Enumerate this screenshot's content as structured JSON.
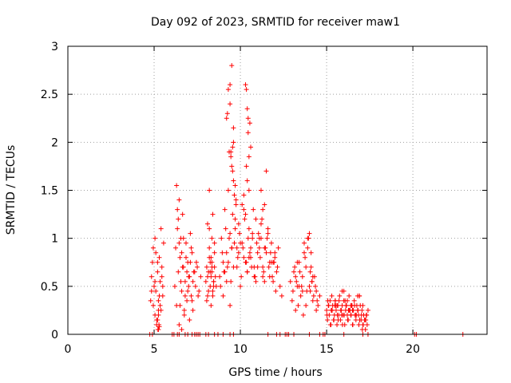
{
  "chart_data": {
    "type": "scatter",
    "title": "Day 092 of 2023, SRMTID for receiver maw1",
    "xlabel": "GPS time / hours",
    "ylabel": "SRMTID / TECUs",
    "xlim": [
      0,
      24.3
    ],
    "ylim": [
      0,
      3
    ],
    "xticks": [
      "0",
      "5",
      "10",
      "15",
      "20"
    ],
    "yticks": [
      "0",
      "0.5",
      "1",
      "1.5",
      "2",
      "2.5",
      "3"
    ],
    "grid": true,
    "legend": "none",
    "marker": "+",
    "color": "#ff0000",
    "series": [
      {
        "x": [
          4.8,
          4.85,
          4.9,
          4.95,
          5.0,
          5.05,
          5.1,
          5.15,
          5.2,
          5.25,
          5.3,
          5.35,
          5.4,
          5.45,
          5.5,
          5.55,
          4.85,
          4.95,
          5.05,
          5.15,
          5.25,
          5.35,
          5.45,
          5.1,
          5.2,
          5.3,
          5.05,
          5.25,
          5.4,
          5.5,
          5.2,
          5.22,
          5.25,
          5.28,
          5.3,
          6.2,
          6.25,
          6.3,
          6.35,
          6.4,
          6.45,
          6.5,
          6.55,
          6.6,
          6.65,
          6.7,
          6.75,
          6.8,
          6.85,
          6.9,
          6.95,
          7.0,
          7.05,
          7.1,
          7.15,
          7.2,
          7.25,
          7.3,
          7.4,
          7.5,
          7.6,
          7.7,
          6.3,
          6.4,
          6.5,
          6.6,
          6.7,
          6.8,
          6.9,
          7.0,
          7.1,
          7.2,
          6.35,
          6.45,
          6.55,
          6.65,
          6.75,
          6.85,
          6.95,
          7.05,
          7.15,
          7.25,
          7.35,
          7.45,
          7.55,
          6.45,
          6.6,
          8.0,
          8.05,
          8.1,
          8.15,
          8.2,
          8.25,
          8.3,
          8.35,
          8.4,
          8.45,
          8.5,
          8.55,
          8.6,
          8.1,
          8.2,
          8.3,
          8.4,
          8.5,
          8.15,
          8.25,
          8.35,
          8.45,
          8.05,
          8.2,
          8.35,
          8.5,
          8.1,
          8.3,
          8.45,
          8.2,
          8.4,
          8.25,
          8.35,
          8.8,
          8.9,
          9.0,
          9.1,
          9.2,
          9.3,
          9.4,
          9.5,
          9.6,
          9.7,
          9.8,
          9.9,
          10.0,
          10.1,
          10.2,
          10.3,
          10.4,
          10.5,
          10.6,
          10.7,
          10.8,
          10.9,
          11.0,
          11.1,
          11.2,
          11.3,
          11.4,
          11.5,
          11.6,
          11.7,
          11.8,
          11.9,
          12.0,
          12.1,
          12.2,
          12.3,
          8.85,
          8.95,
          9.05,
          9.15,
          9.25,
          9.35,
          9.45,
          9.55,
          9.65,
          9.75,
          9.85,
          9.95,
          10.05,
          10.15,
          10.25,
          10.35,
          10.45,
          10.55,
          10.65,
          10.75,
          10.85,
          10.95,
          11.05,
          11.15,
          11.25,
          11.35,
          11.45,
          11.55,
          11.65,
          11.75,
          11.85,
          11.95,
          12.05,
          12.15,
          9.0,
          9.2,
          9.4,
          9.6,
          9.8,
          10.0,
          10.2,
          10.4,
          10.6,
          10.8,
          11.0,
          11.2,
          11.4,
          11.6,
          11.8,
          12.0,
          9.1,
          9.3,
          9.5,
          9.7,
          9.9,
          10.1,
          10.3,
          10.5,
          10.7,
          10.9,
          11.1,
          11.3,
          11.5,
          11.7,
          11.9,
          9.2,
          9.25,
          9.3,
          9.4,
          9.45,
          9.5,
          9.55,
          9.6,
          9.65,
          9.7,
          10.3,
          10.35,
          10.4,
          10.45,
          10.5,
          10.55,
          10.2,
          10.4,
          10.6,
          11.2,
          11.3,
          11.4,
          9.45,
          9.5,
          9.6,
          9.35,
          9.4,
          9.55,
          9.65,
          9.75,
          10.35,
          10.45,
          10.5,
          12.4,
          12.9,
          13.0,
          13.1,
          13.2,
          13.3,
          13.4,
          13.5,
          13.6,
          13.7,
          13.8,
          13.9,
          14.0,
          14.1,
          14.2,
          14.3,
          14.4,
          14.5,
          14.6,
          13.05,
          13.15,
          13.25,
          13.35,
          13.45,
          13.55,
          13.65,
          13.75,
          13.85,
          13.95,
          14.05,
          14.15,
          14.25,
          14.35,
          14.45,
          13.2,
          13.4,
          13.6,
          13.8,
          14.0,
          14.2,
          14.4,
          13.3,
          13.7,
          14.1,
          13.9,
          14.05,
          14.15,
          15.0,
          15.05,
          15.1,
          15.15,
          15.2,
          15.25,
          15.3,
          15.35,
          15.4,
          15.45,
          15.5,
          15.55,
          15.6,
          15.65,
          15.7,
          15.75,
          15.8,
          15.85,
          15.9,
          15.95,
          16.0,
          16.05,
          16.1,
          16.15,
          16.2,
          16.25,
          16.3,
          16.35,
          16.4,
          16.45,
          16.5,
          16.55,
          16.6,
          16.65,
          16.7,
          16.75,
          16.8,
          16.85,
          16.9,
          16.95,
          17.0,
          17.05,
          17.1,
          17.15,
          17.2,
          17.25,
          17.3,
          17.35,
          17.4,
          15.02,
          15.12,
          15.22,
          15.32,
          15.42,
          15.52,
          15.62,
          15.72,
          15.82,
          15.92,
          16.02,
          16.12,
          16.22,
          16.32,
          16.42,
          16.52,
          16.62,
          16.72,
          16.82,
          16.92,
          17.02,
          17.12,
          17.22,
          17.32,
          15.07,
          15.27,
          15.47,
          15.67,
          15.87,
          16.07,
          16.27,
          16.47,
          16.67,
          16.87,
          17.07,
          17.27,
          15.3,
          15.6,
          15.9,
          16.2,
          16.5,
          16.8,
          17.1,
          15.5,
          16.0,
          16.4,
          16.9,
          4.75,
          4.9,
          6.05,
          6.15,
          6.35,
          6.45,
          6.8,
          6.95,
          7.2,
          7.35,
          7.45,
          7.55,
          7.65,
          8.0,
          8.15,
          8.5,
          8.7,
          9.0,
          9.4,
          9.6,
          11.6,
          12.1,
          12.3,
          12.6,
          12.7,
          12.8,
          13.1,
          14.0,
          14.6,
          14.8,
          14.9,
          16.0,
          17.1,
          17.4,
          20.1,
          20.2,
          22.9
        ],
        "y": [
          0.35,
          0.6,
          0.75,
          0.3,
          0.5,
          0.2,
          0.45,
          0.1,
          0.65,
          0.35,
          0.8,
          0.55,
          0.25,
          0.7,
          0.4,
          0.95,
          0.45,
          0.9,
          0.55,
          0.15,
          0.05,
          0.3,
          0.6,
          0.85,
          0.75,
          0.4,
          1.0,
          0.2,
          1.1,
          0.5,
          0.15,
          0.05,
          0.25,
          0.1,
          0.08,
          0.5,
          0.9,
          0.3,
          1.1,
          0.65,
          1.4,
          0.8,
          1.0,
          0.45,
          1.25,
          0.7,
          0.2,
          0.55,
          0.95,
          0.35,
          0.75,
          0.6,
          0.15,
          1.05,
          0.4,
          0.85,
          0.25,
          0.65,
          0.5,
          0.7,
          0.45,
          0.6,
          1.55,
          1.2,
          0.3,
          0.85,
          1.0,
          0.4,
          0.65,
          0.5,
          0.75,
          0.35,
          1.3,
          0.95,
          0.55,
          0.7,
          0.25,
          0.8,
          0.45,
          0.6,
          0.9,
          0.55,
          0.65,
          0.75,
          0.4,
          0.1,
          0.05,
          0.55,
          0.7,
          0.4,
          0.65,
          0.8,
          0.5,
          0.6,
          0.75,
          0.45,
          0.55,
          0.7,
          0.6,
          0.5,
          1.15,
          0.9,
          0.3,
          1.25,
          0.85,
          0.45,
          0.65,
          1.0,
          0.55,
          0.35,
          1.5,
          0.7,
          0.95,
          0.6,
          0.8,
          0.5,
          1.1,
          0.4,
          0.75,
          0.65,
          0.6,
          1.0,
          0.75,
          1.3,
          0.85,
          1.5,
          1.05,
          0.9,
          1.6,
          1.2,
          0.7,
          1.15,
          0.95,
          1.35,
          0.8,
          1.25,
          0.65,
          1.1,
          0.9,
          1.05,
          0.7,
          1.2,
          0.85,
          1.0,
          1.15,
          0.6,
          0.9,
          1.7,
          1.1,
          0.75,
          0.95,
          0.55,
          0.8,
          0.65,
          0.9,
          0.5,
          0.5,
          0.85,
          0.65,
          1.1,
          0.7,
          1.0,
          0.55,
          1.25,
          0.95,
          1.4,
          0.8,
          1.05,
          0.6,
          0.9,
          1.2,
          0.75,
          1.0,
          0.85,
          0.7,
          1.3,
          0.6,
          0.95,
          1.05,
          0.8,
          1.2,
          0.65,
          0.9,
          1.0,
          0.7,
          0.85,
          0.6,
          0.75,
          0.45,
          0.7,
          0.4,
          0.55,
          0.3,
          0.7,
          0.9,
          0.5,
          1.45,
          0.65,
          0.8,
          0.6,
          0.7,
          1.0,
          0.55,
          1.05,
          0.75,
          0.85,
          0.65,
          0.75,
          0.9,
          1.1,
          0.85,
          0.95,
          0.75,
          0.8,
          1.0,
          0.55,
          0.9,
          0.7,
          0.85,
          0.6,
          0.75,
          2.25,
          2.3,
          2.55,
          2.6,
          1.9,
          2.8,
          1.95,
          2.0,
          1.45,
          1.55,
          2.6,
          2.55,
          2.35,
          2.25,
          1.85,
          2.2,
          1.3,
          1.6,
          1.95,
          1.5,
          1.3,
          1.35,
          1.85,
          1.75,
          2.15,
          1.9,
          2.4,
          1.7,
          1.45,
          1.35,
          1.75,
          2.1,
          1.5,
          0.4,
          0.55,
          0.35,
          0.65,
          0.25,
          0.5,
          0.75,
          0.4,
          0.6,
          0.85,
          0.3,
          0.9,
          0.5,
          0.7,
          0.35,
          0.6,
          0.45,
          0.3,
          0.4,
          0.45,
          0.7,
          0.55,
          0.3,
          0.65,
          0.5,
          0.2,
          0.8,
          0.45,
          1.0,
          0.65,
          0.55,
          0.4,
          0.5,
          0.35,
          0.6,
          0.5,
          0.45,
          0.7,
          1.05,
          0.6,
          0.25,
          0.75,
          0.95,
          0.85,
          1.0,
          0.45,
          0.55,
          0.25,
          0.15,
          0.3,
          0.2,
          0.35,
          0.1,
          0.25,
          0.3,
          0.15,
          0.2,
          0.35,
          0.25,
          0.1,
          0.3,
          0.2,
          0.4,
          0.15,
          0.25,
          0.3,
          0.2,
          0.35,
          0.1,
          0.25,
          0.3,
          0.2,
          0.15,
          0.4,
          0.25,
          0.2,
          0.3,
          0.1,
          0.25,
          0.35,
          0.2,
          0.15,
          0.3,
          0.25,
          0.2,
          0.4,
          0.3,
          0.15,
          0.25,
          0.1,
          0.2,
          0.15,
          0.05,
          0.2,
          0.1,
          0.25,
          0.2,
          0.3,
          0.1,
          0.25,
          0.15,
          0.3,
          0.2,
          0.35,
          0.25,
          0.1,
          0.2,
          0.3,
          0.15,
          0.25,
          0.2,
          0.1,
          0.3,
          0.2,
          0.25,
          0.15,
          0.2,
          0.1,
          0.15,
          0.2,
          0.35,
          0.25,
          0.3,
          0.15,
          0.2,
          0.35,
          0.25,
          0.3,
          0.2,
          0.1,
          0.05,
          0.15,
          0.4,
          0.3,
          0.45,
          0.35,
          0.25,
          0.4,
          0.3,
          0.35,
          0.45,
          0.3,
          0.4,
          0,
          0,
          0,
          0,
          0,
          0,
          0,
          0,
          0,
          0,
          0,
          0,
          0,
          0,
          0,
          0,
          0,
          0,
          0,
          0,
          0,
          0,
          0,
          0,
          0,
          0,
          0,
          0,
          0,
          0,
          0,
          0,
          0,
          0,
          0,
          0,
          0
        ]
      }
    ]
  }
}
